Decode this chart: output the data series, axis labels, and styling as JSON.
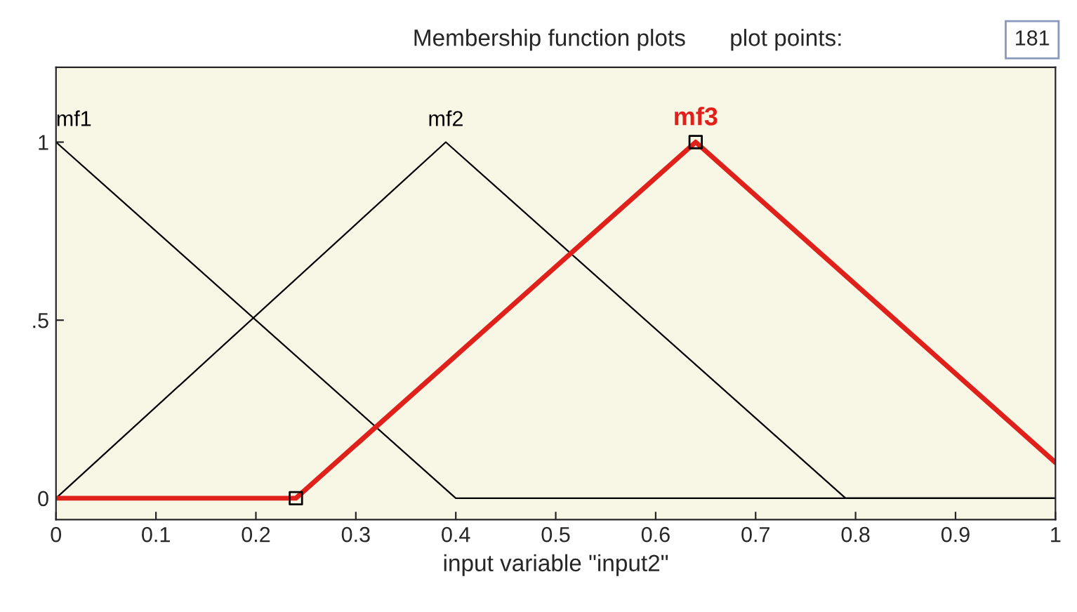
{
  "chart_data": {
    "type": "line",
    "title": "Membership function plots",
    "xlabel": "input variable \"input2\"",
    "xlim": [
      0,
      1
    ],
    "ylim": [
      -0.06,
      1.21
    ],
    "xticks": [
      0,
      0.1,
      0.2,
      0.3,
      0.4,
      0.5,
      0.6,
      0.7,
      0.8,
      0.9,
      1
    ],
    "yticks": [
      0,
      {
        "value": 0.5,
        "label": ".5"
      },
      1
    ],
    "grid": false,
    "legend": false,
    "series": [
      {
        "x": [
          0,
          0.4,
          1
        ],
        "values": [
          1,
          0,
          0
        ],
        "color": "#000000"
      },
      {
        "x": [
          0,
          0.39,
          0.79,
          1
        ],
        "values": [
          0,
          1,
          0,
          0
        ],
        "color": "#000000"
      },
      {
        "x": [
          0,
          0.24,
          0.64,
          1
        ],
        "values": [
          0,
          0,
          1,
          0.1
        ],
        "color": "#e0201b"
      },
      {
        "type": "scatter",
        "x": [
          0.24,
          0.64
        ],
        "values": [
          0,
          1
        ],
        "color": "#000000",
        "marker": "square"
      }
    ],
    "annotations": [
      {
        "text": "mf1",
        "x": 0,
        "y": 1
      },
      {
        "text": "mf2",
        "x": 0.39,
        "y": 1
      },
      {
        "text": "mf3",
        "x": 0.64,
        "y": 1
      },
      "plot points:",
      "181"
    ]
  }
}
